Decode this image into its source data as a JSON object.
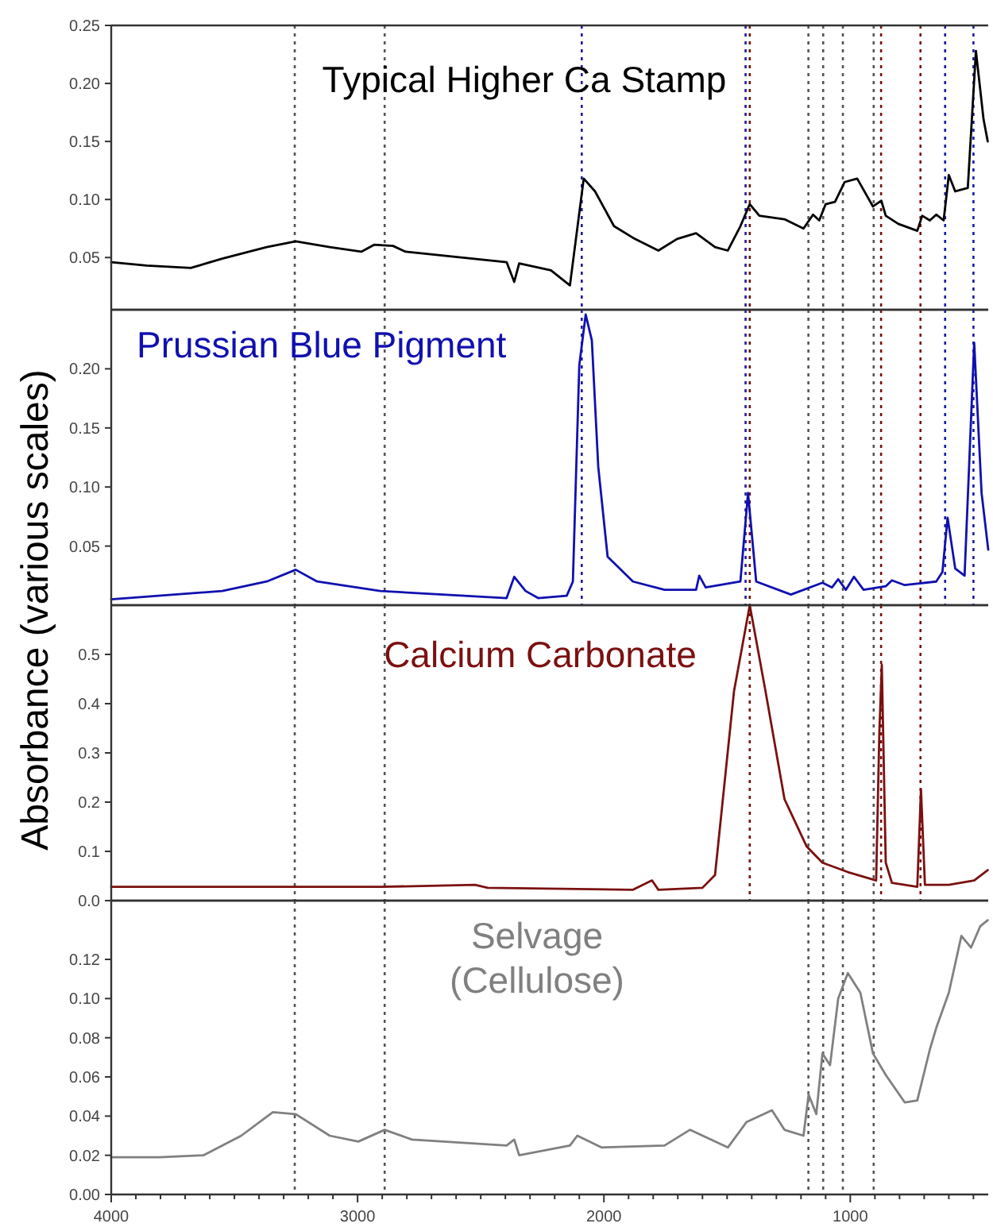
{
  "chart_data": [
    {
      "type": "line",
      "tick_labels": "y",
      "xlim": [
        4000,
        440
      ],
      "ylim": [
        0.005,
        0.25
      ],
      "yticks": [
        {
          "value": 0.05,
          "label": "0.05"
        },
        {
          "value": 0.1,
          "label": "0.10"
        },
        {
          "value": 0.15,
          "label": "0.15"
        },
        {
          "value": 0.2,
          "label": "0.20"
        },
        {
          "value": 0.25,
          "label": "0.25"
        }
      ],
      "x": [
        4000,
        3856,
        3677,
        3549,
        3369,
        3251,
        3113,
        2985,
        2933,
        2856,
        2805,
        2395,
        2364,
        2344,
        2215,
        2138,
        2082,
        2036,
        1959,
        1882,
        1779,
        1703,
        1626,
        1549,
        1497,
        1446,
        1408,
        1369,
        1267,
        1190,
        1151,
        1126,
        1100,
        1062,
        1023,
        972,
        908,
        874,
        856,
        805,
        728,
        708,
        677,
        651,
        621,
        600,
        574,
        523,
        490,
        459,
        442
      ],
      "series": [
        {
          "name": "Typical Higher Ca Stamp",
          "color": "#000000",
          "values": [
            0.046,
            0.043,
            0.041,
            0.049,
            0.059,
            0.064,
            0.059,
            0.055,
            0.061,
            0.06,
            0.055,
            0.046,
            0.029,
            0.045,
            0.039,
            0.026,
            0.118,
            0.107,
            0.077,
            0.067,
            0.056,
            0.066,
            0.071,
            0.059,
            0.056,
            0.077,
            0.096,
            0.086,
            0.083,
            0.075,
            0.087,
            0.082,
            0.096,
            0.098,
            0.115,
            0.118,
            0.094,
            0.099,
            0.086,
            0.079,
            0.073,
            0.086,
            0.082,
            0.087,
            0.082,
            0.121,
            0.107,
            0.11,
            0.228,
            0.169,
            0.15
          ]
        }
      ],
      "ref_lines": [
        {
          "axis": "x",
          "value": 3255,
          "color": "#555555",
          "line_style": "dotted"
        },
        {
          "axis": "x",
          "value": 2890,
          "color": "#555555",
          "line_style": "dotted"
        },
        {
          "axis": "x",
          "value": 2090,
          "color": "#1a1aa6",
          "line_style": "dotted"
        },
        {
          "axis": "x",
          "value": 1425,
          "color": "#1a1aa6",
          "line_style": "dotted"
        },
        {
          "axis": "x",
          "value": 1408,
          "color": "#7a1010",
          "line_style": "dotted"
        },
        {
          "axis": "x",
          "value": 1170,
          "color": "#555555",
          "line_style": "dotted"
        },
        {
          "axis": "x",
          "value": 1110,
          "color": "#555555",
          "line_style": "dotted"
        },
        {
          "axis": "x",
          "value": 1030,
          "color": "#555555",
          "line_style": "dotted"
        },
        {
          "axis": "x",
          "value": 905,
          "color": "#555555",
          "line_style": "dotted"
        },
        {
          "axis": "x",
          "value": 875,
          "color": "#7a1010",
          "line_style": "dotted"
        },
        {
          "axis": "x",
          "value": 715,
          "color": "#7a1010",
          "line_style": "dotted"
        },
        {
          "axis": "x",
          "value": 615,
          "color": "#1a1aa6",
          "line_style": "dotted"
        },
        {
          "axis": "x",
          "value": 500,
          "color": "#1a1aa6",
          "line_style": "dotted"
        }
      ]
    },
    {
      "type": "line",
      "tick_labels": "y",
      "xlim": [
        4000,
        440
      ],
      "ylim": [
        0,
        0.25
      ],
      "yticks": [
        {
          "value": 0.05,
          "label": "0.05"
        },
        {
          "value": 0.1,
          "label": "0.10"
        },
        {
          "value": 0.15,
          "label": "0.15"
        },
        {
          "value": 0.2,
          "label": "0.20"
        }
      ],
      "x": [
        4000,
        3549,
        3369,
        3251,
        3164,
        2908,
        2395,
        2364,
        2318,
        2267,
        2151,
        2126,
        2100,
        2074,
        2049,
        2023,
        1985,
        1882,
        1754,
        1626,
        1613,
        1587,
        1446,
        1415,
        1382,
        1241,
        1113,
        1074,
        1049,
        1018,
        985,
        946,
        856,
        831,
        779,
        651,
        626,
        605,
        574,
        536,
        497,
        467,
        440
      ],
      "series": [
        {
          "name": "Prussian Blue Pigment",
          "color": "#1010b0",
          "values": [
            0.005,
            0.012,
            0.02,
            0.03,
            0.02,
            0.012,
            0.006,
            0.024,
            0.012,
            0.006,
            0.008,
            0.02,
            0.203,
            0.246,
            0.224,
            0.117,
            0.041,
            0.02,
            0.013,
            0.013,
            0.025,
            0.015,
            0.02,
            0.095,
            0.02,
            0.009,
            0.019,
            0.015,
            0.022,
            0.013,
            0.024,
            0.013,
            0.016,
            0.021,
            0.017,
            0.02,
            0.028,
            0.074,
            0.031,
            0.025,
            0.222,
            0.095,
            0.047
          ]
        }
      ],
      "ref_lines": [
        {
          "axis": "x",
          "value": 3255,
          "color": "#555555",
          "line_style": "dotted"
        },
        {
          "axis": "x",
          "value": 2890,
          "color": "#555555",
          "line_style": "dotted"
        },
        {
          "axis": "x",
          "value": 2090,
          "color": "#1a1aa6",
          "line_style": "dotted"
        },
        {
          "axis": "x",
          "value": 1425,
          "color": "#1a1aa6",
          "line_style": "dotted"
        },
        {
          "axis": "x",
          "value": 1408,
          "color": "#7a1010",
          "line_style": "dotted"
        },
        {
          "axis": "x",
          "value": 1170,
          "color": "#555555",
          "line_style": "dotted"
        },
        {
          "axis": "x",
          "value": 1110,
          "color": "#555555",
          "line_style": "dotted"
        },
        {
          "axis": "x",
          "value": 1030,
          "color": "#555555",
          "line_style": "dotted"
        },
        {
          "axis": "x",
          "value": 905,
          "color": "#555555",
          "line_style": "dotted"
        },
        {
          "axis": "x",
          "value": 875,
          "color": "#7a1010",
          "line_style": "dotted"
        },
        {
          "axis": "x",
          "value": 715,
          "color": "#7a1010",
          "line_style": "dotted"
        },
        {
          "axis": "x",
          "value": 615,
          "color": "#1a1aa6",
          "line_style": "dotted"
        },
        {
          "axis": "x",
          "value": 500,
          "color": "#1a1aa6",
          "line_style": "dotted"
        }
      ]
    },
    {
      "type": "line",
      "tick_labels": "y",
      "ylabel": "Absorbance (various scales)",
      "xlim": [
        4000,
        440
      ],
      "ylim": [
        0,
        0.6
      ],
      "yticks": [
        {
          "value": 0,
          "label": "0.0"
        },
        0.1,
        0.2,
        0.3,
        0.4,
        0.5
      ],
      "x": [
        4000,
        2908,
        2523,
        2472,
        1882,
        1805,
        1779,
        1600,
        1549,
        1472,
        1408,
        1344,
        1267,
        1177,
        1113,
        1010,
        895,
        882,
        872,
        856,
        831,
        728,
        713,
        697,
        600,
        497,
        442
      ],
      "series": [
        {
          "name": "Calcium Carbonate",
          "color": "#7b1010",
          "values": [
            0.028,
            0.028,
            0.032,
            0.026,
            0.022,
            0.041,
            0.022,
            0.026,
            0.052,
            0.425,
            0.6,
            0.425,
            0.206,
            0.11,
            0.077,
            0.058,
            0.041,
            0.342,
            0.479,
            0.077,
            0.036,
            0.028,
            0.226,
            0.032,
            0.032,
            0.041,
            0.062
          ]
        }
      ],
      "ref_lines": [
        {
          "axis": "x",
          "value": 3255,
          "color": "#555555",
          "line_style": "dotted"
        },
        {
          "axis": "x",
          "value": 2890,
          "color": "#555555",
          "line_style": "dotted"
        },
        {
          "axis": "x",
          "value": 1408,
          "color": "#7a1010",
          "line_style": "dotted"
        },
        {
          "axis": "x",
          "value": 1170,
          "color": "#555555",
          "line_style": "dotted"
        },
        {
          "axis": "x",
          "value": 1110,
          "color": "#555555",
          "line_style": "dotted"
        },
        {
          "axis": "x",
          "value": 1030,
          "color": "#555555",
          "line_style": "dotted"
        },
        {
          "axis": "x",
          "value": 905,
          "color": "#555555",
          "line_style": "dotted"
        },
        {
          "axis": "x",
          "value": 875,
          "color": "#7a1010",
          "line_style": "dotted"
        },
        {
          "axis": "x",
          "value": 715,
          "color": "#7a1010",
          "line_style": "dotted"
        }
      ]
    },
    {
      "type": "line",
      "xlim": [
        4000,
        440
      ],
      "ylim": [
        0,
        0.15
      ],
      "yticks": [
        {
          "value": 0,
          "label": "0.00"
        },
        0.02,
        0.04,
        0.06,
        0.08,
        {
          "value": 0.1,
          "label": "0.10"
        },
        0.12
      ],
      "xticks": [
        4000,
        {
          "value": 3900,
          "label": null
        },
        {
          "value": 3800,
          "label": null
        },
        {
          "value": 3700,
          "label": null
        },
        {
          "value": 3600,
          "label": null
        },
        {
          "value": 3500,
          "label": null
        },
        {
          "value": 3400,
          "label": null
        },
        {
          "value": 3300,
          "label": null
        },
        {
          "value": 3200,
          "label": null
        },
        {
          "value": 3100,
          "label": null
        },
        3000,
        {
          "value": 2900,
          "label": null
        },
        {
          "value": 2800,
          "label": null
        },
        {
          "value": 2700,
          "label": null
        },
        {
          "value": 2600,
          "label": null
        },
        {
          "value": 2500,
          "label": null
        },
        {
          "value": 2400,
          "label": null
        },
        {
          "value": 2300,
          "label": null
        },
        {
          "value": 2200,
          "label": null
        },
        {
          "value": 2100,
          "label": null
        },
        2000,
        {
          "value": 1900,
          "label": null
        },
        {
          "value": 1800,
          "label": null
        },
        {
          "value": 1700,
          "label": null
        },
        {
          "value": 1600,
          "label": null
        },
        {
          "value": 1500,
          "label": null
        },
        {
          "value": 1400,
          "label": null
        },
        {
          "value": 1300,
          "label": null
        },
        {
          "value": 1200,
          "label": null
        },
        {
          "value": 1100,
          "label": null
        },
        1000,
        {
          "value": 900,
          "label": null
        },
        {
          "value": 800,
          "label": null
        },
        {
          "value": 700,
          "label": null
        },
        {
          "value": 600,
          "label": null
        },
        {
          "value": 500,
          "label": null
        }
      ],
      "x": [
        4000,
        3805,
        3626,
        3472,
        3344,
        3251,
        3113,
        2997,
        2890,
        2779,
        2395,
        2364,
        2344,
        2138,
        2108,
        2010,
        1754,
        1651,
        1497,
        1421,
        1318,
        1267,
        1190,
        1169,
        1138,
        1113,
        1082,
        1049,
        1010,
        959,
        908,
        856,
        779,
        728,
        677,
        651,
        600,
        549,
        510,
        472,
        442
      ],
      "series": [
        {
          "name": "Selvage\n(Cellulose)",
          "color": "#808080",
          "values": [
            0.019,
            0.019,
            0.02,
            0.03,
            0.042,
            0.041,
            0.03,
            0.027,
            0.033,
            0.028,
            0.025,
            0.028,
            0.02,
            0.025,
            0.03,
            0.024,
            0.025,
            0.033,
            0.024,
            0.037,
            0.043,
            0.033,
            0.03,
            0.051,
            0.041,
            0.072,
            0.066,
            0.1,
            0.113,
            0.103,
            0.072,
            0.061,
            0.047,
            0.048,
            0.074,
            0.085,
            0.103,
            0.132,
            0.126,
            0.137,
            0.14
          ]
        }
      ],
      "ref_lines": [
        {
          "axis": "x",
          "value": 3255,
          "color": "#555555",
          "line_style": "dotted"
        },
        {
          "axis": "x",
          "value": 2890,
          "color": "#555555",
          "line_style": "dotted"
        },
        {
          "axis": "x",
          "value": 1170,
          "color": "#555555",
          "line_style": "dotted"
        },
        {
          "axis": "x",
          "value": 1110,
          "color": "#555555",
          "line_style": "dotted"
        },
        {
          "axis": "x",
          "value": 1030,
          "color": "#555555",
          "line_style": "dotted"
        },
        {
          "axis": "x",
          "value": 905,
          "color": "#555555",
          "line_style": "dotted"
        }
      ]
    }
  ]
}
